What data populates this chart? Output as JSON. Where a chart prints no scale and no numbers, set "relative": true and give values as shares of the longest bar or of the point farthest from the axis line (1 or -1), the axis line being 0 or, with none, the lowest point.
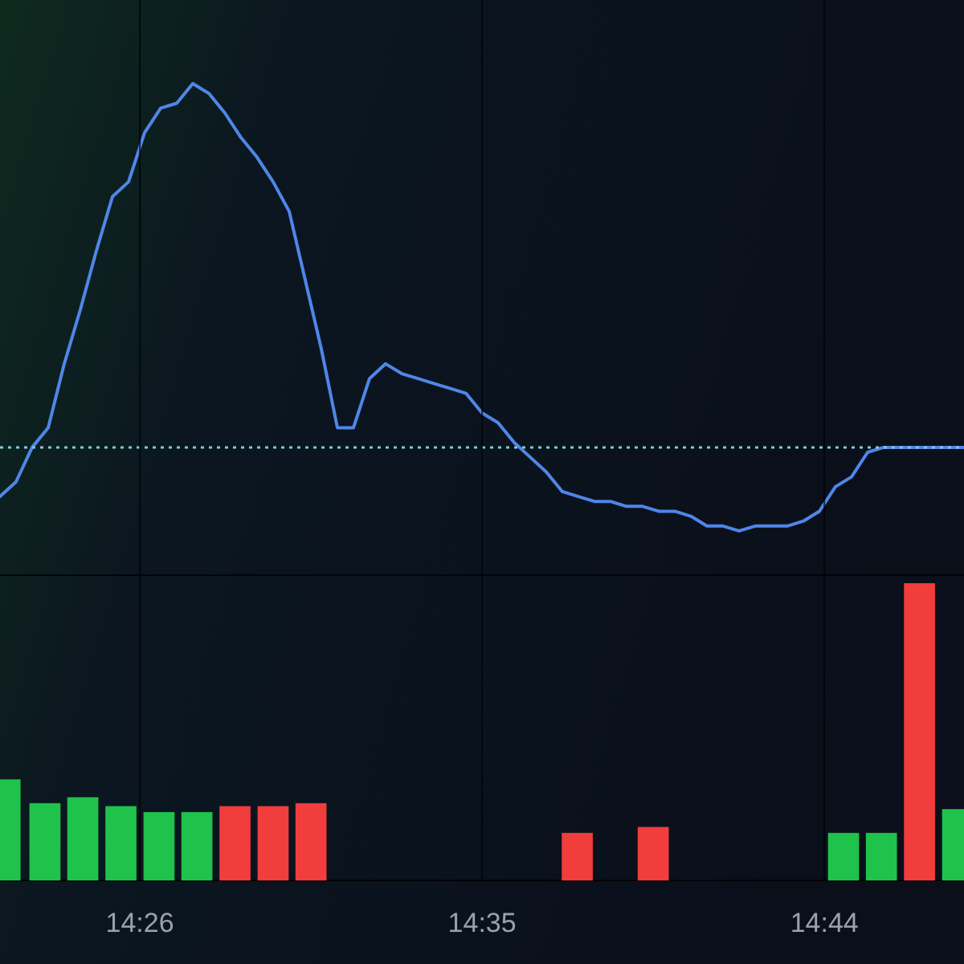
{
  "chart_data": [
    {
      "type": "line",
      "relative": true,
      "categories": [
        null,
        null,
        null,
        null,
        null,
        null,
        null,
        null,
        null,
        null,
        null,
        null,
        null,
        null,
        null,
        null,
        null,
        null,
        null,
        null,
        null,
        null,
        null,
        null,
        null,
        null,
        null,
        null,
        null,
        null,
        null,
        null,
        null,
        null,
        null,
        null,
        null,
        null,
        null,
        null,
        null,
        null,
        null,
        null,
        null,
        null,
        null,
        null,
        null,
        null,
        null,
        null,
        null,
        null,
        null,
        null,
        null,
        null,
        null,
        null,
        null
      ],
      "ref_lines": [
        {
          "axis": "y",
          "value": 0.26,
          "color": "#7ec8d8",
          "line_style": "dotted"
        }
      ],
      "series": [
        {
          "color": "#4f86e8",
          "values": [
            0.16,
            0.19,
            0.26,
            0.3,
            0.43,
            0.54,
            0.66,
            0.77,
            0.8,
            0.9,
            0.95,
            0.96,
            1,
            0.98,
            0.94,
            0.89,
            0.85,
            0.8,
            0.74,
            0.6,
            0.46,
            0.3,
            0.3,
            0.4,
            0.43,
            0.41,
            0.4,
            0.39,
            0.38,
            0.37,
            0.33,
            0.31,
            0.27,
            0.24,
            0.21,
            0.17,
            0.16,
            0.15,
            0.15,
            0.14,
            0.14,
            0.13,
            0.13,
            0.12,
            0.1,
            0.1,
            0.09,
            0.1,
            0.1,
            0.1,
            0.11,
            0.13,
            0.18,
            0.2,
            0.25,
            0.26,
            0.26,
            0.26,
            0.26,
            0.26,
            0.26
          ]
        }
      ]
    },
    {
      "type": "bar",
      "relative": true,
      "grid": "x",
      "tick_labels": "x",
      "xlim": [
        14.372,
        14.7945
      ],
      "xticks": [
        {
          "value": 14.4333,
          "label": "14:26"
        },
        {
          "value": 14.5833,
          "label": "14:35"
        },
        {
          "value": 14.7333,
          "label": "14:44"
        }
      ],
      "x": [
        14.3742,
        14.3917,
        14.4083,
        14.425,
        14.4417,
        14.4583,
        14.475,
        14.4917,
        14.5083,
        14.625,
        14.6583,
        14.7417,
        14.7583,
        14.775,
        14.7917
      ],
      "values": [
        0.34,
        0.26,
        0.28,
        0.25,
        0.23,
        0.23,
        0.25,
        0.25,
        0.26,
        0.16,
        0.18,
        0.16,
        0.16,
        1,
        0.24
      ],
      "colors": [
        "#1fc24a",
        "#1fc24a",
        "#1fc24a",
        "#1fc24a",
        "#1fc24a",
        "#1fc24a",
        "#f23d3d",
        "#f23d3d",
        "#f23d3d",
        "#f23d3d",
        "#f23d3d",
        "#1fc24a",
        "#1fc24a",
        "#f23d3d",
        "#1fc24a"
      ]
    }
  ]
}
